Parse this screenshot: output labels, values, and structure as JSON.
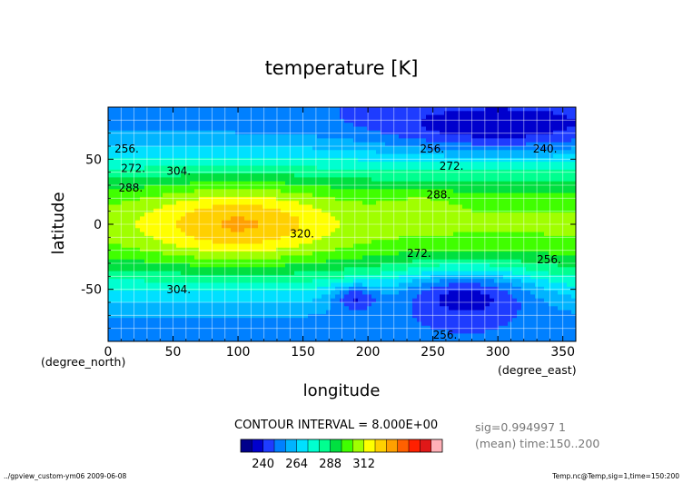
{
  "chart_data": {
    "type": "heatmap",
    "title": "temperature [K]",
    "xlabel": "longitude",
    "ylabel": "latitude",
    "x_unit": "(degree_east)",
    "y_unit": "(degree_north)",
    "xlim": [
      0,
      360
    ],
    "ylim": [
      -90,
      90
    ],
    "x_ticks": [
      0,
      50,
      100,
      150,
      200,
      250,
      300,
      350
    ],
    "y_ticks": [
      -50,
      0,
      50
    ],
    "grid": true,
    "contour_interval_text": "CONTOUR INTERVAL = 8.000E+00",
    "info_line1": "sig=0.994997 1",
    "info_line2": "(mean) time:150..200",
    "footer_left": "../gpview_custom-ym06  2009-06-08",
    "footer_right": "Temp.nc@Temp,sig=1,time=150:200",
    "colorbar_ticks": [
      240,
      264,
      288,
      312
    ],
    "colorbar_colors": [
      "#00008b",
      "#0000cd",
      "#1e3cff",
      "#0080ff",
      "#00b4ff",
      "#00e0ff",
      "#00ffd0",
      "#00ff90",
      "#00e040",
      "#40ff00",
      "#a0ff00",
      "#ffff00",
      "#ffd000",
      "#ffa000",
      "#ff6000",
      "#ff2000",
      "#e01818",
      "#ffb0b8"
    ],
    "contour_labels": [
      {
        "text": "256.",
        "lon": 5,
        "lat": 55
      },
      {
        "text": "272.",
        "lon": 10,
        "lat": 40
      },
      {
        "text": "288.",
        "lon": 8,
        "lat": 25
      },
      {
        "text": "304.",
        "lon": 45,
        "lat": 38
      },
      {
        "text": "320.",
        "lon": 140,
        "lat": -10
      },
      {
        "text": "304.",
        "lon": 45,
        "lat": -53
      },
      {
        "text": "256.",
        "lon": 240,
        "lat": 55
      },
      {
        "text": "272.",
        "lon": 255,
        "lat": 42
      },
      {
        "text": "240.",
        "lon": 327,
        "lat": 55
      },
      {
        "text": "288.",
        "lon": 245,
        "lat": 20
      },
      {
        "text": "272.",
        "lon": 230,
        "lat": -25
      },
      {
        "text": "256.",
        "lon": 330,
        "lat": -30
      },
      {
        "text": "256.",
        "lon": 250,
        "lat": -95
      }
    ],
    "field_features": [
      {
        "kind": "warm-max",
        "lon": 100,
        "lat": 0,
        "value": 324
      },
      {
        "kind": "cold-min",
        "lon": 190,
        "lat": -55,
        "value": 236
      },
      {
        "kind": "cold-min",
        "lon": 340,
        "lat": 70,
        "value": 232
      }
    ]
  }
}
